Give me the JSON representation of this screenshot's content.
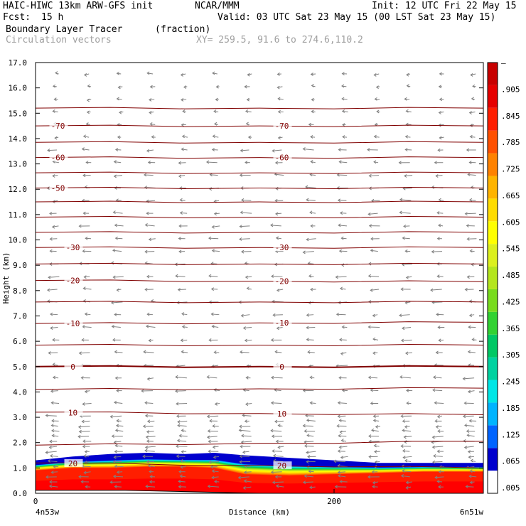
{
  "header": {
    "model": "HAIC-HIWC 13km ARW-GFS init",
    "org": "NCAR/MMM",
    "init": "Init: 12 UTC Fri 22 May 15",
    "fcst_label": "Fcst:",
    "fcst_value": "15 h",
    "valid": "Valid: 03 UTC Sat 23 May 15 (00 LST Sat 23 May 15)",
    "field": "Boundary Layer Tracer",
    "field_units": "(fraction)",
    "overlay": "Circulation vectors",
    "xy": "XY= 259.5, 91.6 to 274.6,110.2"
  },
  "chart_data": {
    "type": "heatmap",
    "title": "Boundary Layer Tracer",
    "ylabel": "Height (km)",
    "xlabel": "Distance (km)",
    "ylim": [
      0,
      17
    ],
    "yticks": [
      "0.0",
      "1.0",
      "2.0",
      "3.0",
      "4.0",
      "5.0",
      "6.0",
      "7.0",
      "8.0",
      "9.0",
      "10.0",
      "11.0",
      "12.0",
      "13.0",
      "14.0",
      "15.0",
      "16.0",
      "17.0"
    ],
    "xlim": [
      0,
      300
    ],
    "xticks": [
      {
        "value": 0,
        "label": "0"
      },
      {
        "value": 200,
        "label": "200"
      }
    ],
    "x_start_label": "4n53w",
    "x_end_label": "6n51w",
    "colorbar": {
      "labels": [
        ".005",
        ".065",
        ".125",
        ".185",
        ".245",
        ".305",
        ".365",
        ".425",
        ".485",
        ".545",
        ".605",
        ".665",
        ".725",
        ".785",
        ".845",
        ".905",
        "–"
      ],
      "colors": [
        "#ffffff",
        "#0000cd",
        "#0064ff",
        "#00b4ff",
        "#00e6e6",
        "#00d2a0",
        "#00c864",
        "#32d232",
        "#78dc1e",
        "#b4e61e",
        "#dcf01e",
        "#ffff00",
        "#ffdc00",
        "#ffb400",
        "#ff8200",
        "#ff5000",
        "#ff1e00",
        "#e60000",
        "#c80000"
      ]
    },
    "tracer_layer": {
      "profile": [
        {
          "x": 0,
          "top": 1.3,
          "mid": 0.9
        },
        {
          "x": 25,
          "top": 1.45,
          "mid": 1.0
        },
        {
          "x": 50,
          "top": 1.55,
          "mid": 1.0
        },
        {
          "x": 75,
          "top": 1.6,
          "mid": 1.05
        },
        {
          "x": 100,
          "top": 1.55,
          "mid": 1.05
        },
        {
          "x": 120,
          "top": 1.6,
          "mid": 1.0
        },
        {
          "x": 140,
          "top": 1.5,
          "mid": 0.75
        },
        {
          "x": 170,
          "top": 1.4,
          "mid": 0.7
        },
        {
          "x": 200,
          "top": 1.3,
          "mid": 0.75
        },
        {
          "x": 230,
          "top": 1.2,
          "mid": 0.8
        },
        {
          "x": 260,
          "top": 1.2,
          "mid": 0.85
        },
        {
          "x": 300,
          "top": 1.2,
          "mid": 0.85
        }
      ]
    },
    "contours": [
      {
        "value": "20",
        "start": 1.2,
        "end": 1.0,
        "label_left": "20",
        "label_right": "20"
      },
      {
        "value": "",
        "start": 1.9,
        "end": 2.05
      },
      {
        "value": "10",
        "start": 3.2,
        "end": 3.1,
        "label_left": "10",
        "label_right": "10"
      },
      {
        "value": "",
        "start": 4.1,
        "end": 4.15
      },
      {
        "value": "0",
        "start": 5.0,
        "end": 5.0,
        "label_left": "0",
        "label_right": "0"
      },
      {
        "value": "",
        "start": 5.85,
        "end": 5.85
      },
      {
        "value": "-10",
        "start": 6.7,
        "end": 6.75,
        "label_left": "-10",
        "label_right": "-10"
      },
      {
        "value": "",
        "start": 7.55,
        "end": 7.55
      },
      {
        "value": "-20",
        "start": 8.4,
        "end": 8.35,
        "label_left": "-20",
        "label_right": "-20"
      },
      {
        "value": "",
        "start": 9.05,
        "end": 9.05
      },
      {
        "value": "-30",
        "start": 9.7,
        "end": 9.7,
        "label_left": "-30",
        "label_right": "-30"
      },
      {
        "value": "",
        "start": 10.3,
        "end": 10.3
      },
      {
        "value": "",
        "start": 10.9,
        "end": 10.9
      },
      {
        "value": "",
        "start": 11.5,
        "end": 11.5
      },
      {
        "value": "-50",
        "start": 12.05,
        "end": 12.05,
        "label_left": "-50"
      },
      {
        "value": "",
        "start": 12.65,
        "end": 12.65
      },
      {
        "value": "-60",
        "start": 13.25,
        "end": 13.25,
        "label_left": "-60",
        "label_right": "-60"
      },
      {
        "value": "",
        "start": 13.85,
        "end": 13.85
      },
      {
        "value": "-70",
        "start": 14.5,
        "end": 14.5,
        "label_left": "-70",
        "label_right": "-70"
      },
      {
        "value": "",
        "start": 15.2,
        "end": 15.2
      }
    ],
    "contour_color": "#800000",
    "vector_color": "#808080"
  }
}
